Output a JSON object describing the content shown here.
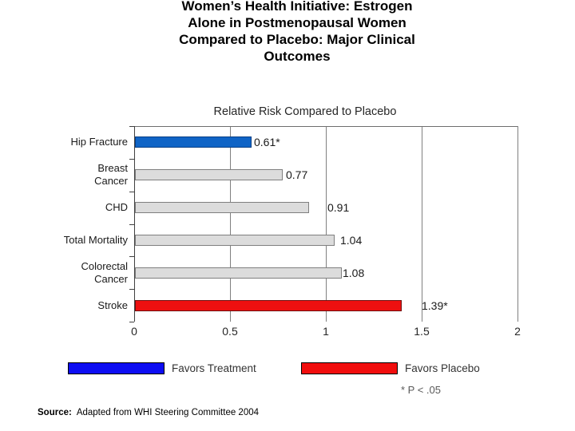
{
  "slide_title": {
    "text": "Women’s Health Initiative: Estrogen\nAlone in Postmenopausal Women\nCompared to Placebo: Major Clinical\nOutcomes"
  },
  "chart_data": {
    "type": "bar",
    "orientation": "horizontal",
    "title": "Relative Risk Compared to Placebo",
    "categories": [
      "Hip Fracture",
      "Breast Cancer",
      "CHD",
      "Total Mortality",
      "Colorectal Cancer",
      "Stroke"
    ],
    "categories_display": [
      "Hip Fracture",
      "Breast\nCancer",
      "CHD",
      "Total Mortality",
      "Colorectal\nCancer",
      "Stroke"
    ],
    "values": [
      0.61,
      0.77,
      0.91,
      1.04,
      1.08,
      1.39
    ],
    "data_labels": [
      "0.61*",
      "0.77",
      "0.91",
      "1.04",
      "1.08",
      "1.39*"
    ],
    "bar_colors": [
      "#0f64c6",
      "#dcdcdc",
      "#dcdcdc",
      "#dcdcdc",
      "#dcdcdc",
      "#ee1010"
    ],
    "bar_border_colors": [
      "#083f85",
      "#7f7f7f",
      "#7f7f7f",
      "#7f7f7f",
      "#7f7f7f",
      "#6e0f0f"
    ],
    "xlabel": "",
    "ylabel": "",
    "xlim": [
      0,
      2
    ],
    "x_ticks": [
      0,
      0.5,
      1,
      1.5,
      2
    ],
    "x_tick_labels": [
      "0",
      "0.5",
      "1",
      "1.5",
      "2"
    ],
    "grid": true,
    "gridline_color": "#808080",
    "axis_color": "#404040",
    "legend_position": "bottom",
    "significance_note": "* P < .05"
  },
  "legend": {
    "items": [
      {
        "label": "Favors Treatment",
        "color": "#0d0df2"
      },
      {
        "label": "Favors Placebo",
        "color": "#f10d0d"
      }
    ]
  },
  "footnote": {
    "text": "* P < .05"
  },
  "source": {
    "label": "Source:",
    "text": "Adapted from WHI Steering Committee 2004"
  }
}
